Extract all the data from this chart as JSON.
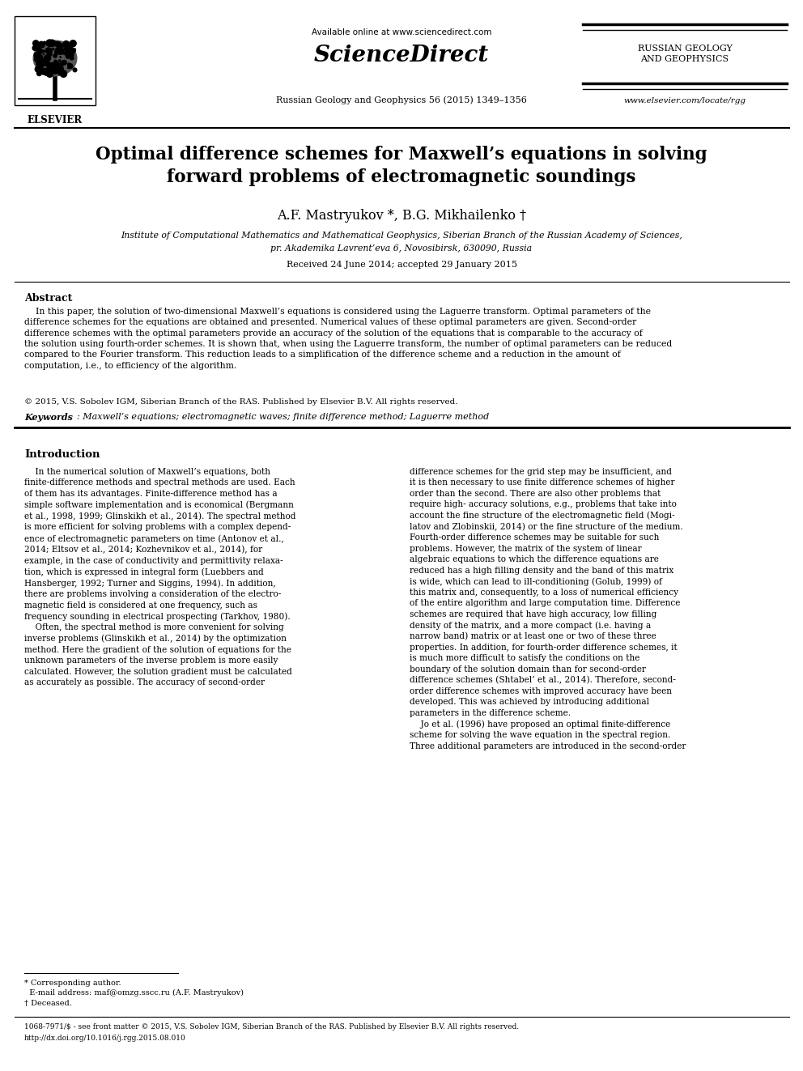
{
  "bg_color": "#ffffff",
  "page_width": 9.92,
  "page_height": 13.23,
  "dpi": 100,
  "header": {
    "available_online": "Available online at www.sciencedirect.com",
    "sciencedirect": "ScienceDirect",
    "journal": "Russian Geology and Geophysics 56 (2015) 1349–1356",
    "russian_geology": "RUSSIAN GEOLOGY\nAND GEOPHYSICS",
    "website": "www.elsevier.com/locate/rgg"
  },
  "title": "Optimal difference schemes for Maxwell’s equations in solving\nforward problems of electromagnetic soundings",
  "authors": "A.F. Mastryukov *, B.G. Mikhailenko †",
  "affiliation_line1": "Institute of Computational Mathematics and Mathematical Geophysics, Siberian Branch of the Russian Academy of Sciences,",
  "affiliation_line2": "pr. Akademika Lavrent’eva 6, Novosibirsk, 630090, Russia",
  "received": "Received 24 June 2014; accepted 29 January 2015",
  "abstract_title": "Abstract",
  "abstract_text": "    In this paper, the solution of two-dimensional Maxwell’s equations is considered using the Laguerre transform. Optimal parameters of the\ndifference schemes for the equations are obtained and presented. Numerical values of these optimal parameters are given. Second-order\ndifference schemes with the optimal parameters provide an accuracy of the solution of the equations that is comparable to the accuracy of\nthe solution using fourth-order schemes. It is shown that, when using the Laguerre transform, the number of optimal parameters can be reduced\ncompared to the Fourier transform. This reduction leads to a simplification of the difference scheme and a reduction in the amount of\ncomputation, i.e., to efficiency of the algorithm.",
  "copyright": "© 2015, V.S. Sobolev IGM, Siberian Branch of the RAS. Published by Elsevier B.V. All rights reserved.",
  "keywords_label": "Keywords",
  "keywords_text": ": Maxwell’s equations; electromagnetic waves; finite difference method; Laguerre method",
  "intro_title": "Introduction",
  "intro_left": "    In the numerical solution of Maxwell’s equations, both\nfinite-difference methods and spectral methods are used. Each\nof them has its advantages. Finite-difference method has a\nsimple software implementation and is economical (Bergmann\net al., 1998, 1999; Glinskikh et al., 2014). The spectral method\nis more efficient for solving problems with a complex depend-\nence of electromagnetic parameters on time (Antonov et al.,\n2014; Eltsov et al., 2014; Kozhevnikov et al., 2014), for\nexample, in the case of conductivity and permittivity relaxa-\ntion, which is expressed in integral form (Luebbers and\nHansberger, 1992; Turner and Siggins, 1994). In addition,\nthere are problems involving a consideration of the electro-\nmagnetic field is considered at one frequency, such as\nfrequency sounding in electrical prospecting (Tarkhov, 1980).\n    Often, the spectral method is more convenient for solving\ninverse problems (Glinskikh et al., 2014) by the optimization\nmethod. Here the gradient of the solution of equations for the\nunknown parameters of the inverse problem is more easily\ncalculated. However, the solution gradient must be calculated\nas accurately as possible. The accuracy of second-order",
  "intro_right": "difference schemes for the grid step may be insufficient, and\nit is then necessary to use finite difference schemes of higher\norder than the second. There are also other problems that\nrequire high- accuracy solutions, e.g., problems that take into\naccount the fine structure of the electromagnetic field (Mogi-\nlatov and Zlobinskii, 2014) or the fine structure of the medium.\nFourth-order difference schemes may be suitable for such\nproblems. However, the matrix of the system of linear\nalgebraic equations to which the difference equations are\nreduced has a high filling density and the band of this matrix\nis wide, which can lead to ill-conditioning (Golub, 1999) of\nthis matrix and, consequently, to a loss of numerical efficiency\nof the entire algorithm and large computation time. Difference\nschemes are required that have high accuracy, low filling\ndensity of the matrix, and a more compact (i.e. having a\nnarrow band) matrix or at least one or two of these three\nproperties. In addition, for fourth-order difference schemes, it\nis much more difficult to satisfy the conditions on the\nboundary of the solution domain than for second-order\ndifference schemes (Shtabel’ et al., 2014). Therefore, second-\norder difference schemes with improved accuracy have been\ndeveloped. This was achieved by introducing additional\nparameters in the difference scheme.\n    Jo et al. (1996) have proposed an optimal finite-difference\nscheme for solving the wave equation in the spectral region.\nThree additional parameters are introduced in the second-order",
  "footnote_star": "* Corresponding author.",
  "footnote_email": "  E-mail address: maf@omzg.sscc.ru (A.F. Mastryukov)",
  "footnote_dagger": "† Deceased.",
  "footer_issn": "1068-7971/$ - see front matter © 2015, V.S. Sobolev IGM, Siberian Branch of the RAS. Published by Elsevier B.V. All rights reserved.",
  "footer_doi": "http://dx.doi.org/10.1016/j.rgg.2015.08.010"
}
